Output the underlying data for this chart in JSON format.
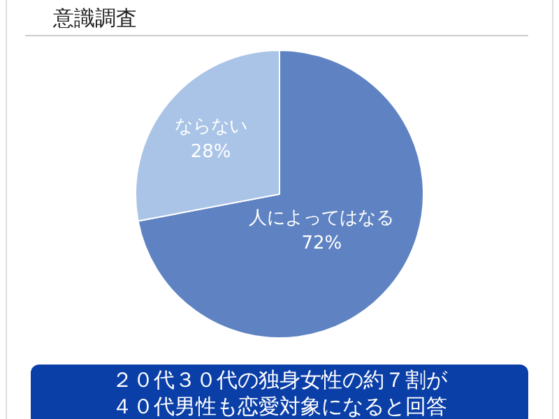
{
  "chart_data": {
    "type": "pie",
    "title": "意識調査",
    "categories": [
      "人によってはなる",
      "ならない"
    ],
    "values": [
      72,
      28
    ],
    "colors": [
      "#5f83c2",
      "#a9c4e6"
    ],
    "value_labels": [
      "72%",
      "28%"
    ],
    "annotations": [
      "２０代３０代の独身女性の約７割が４０代男性も恋愛対象になると回答"
    ]
  }
}
